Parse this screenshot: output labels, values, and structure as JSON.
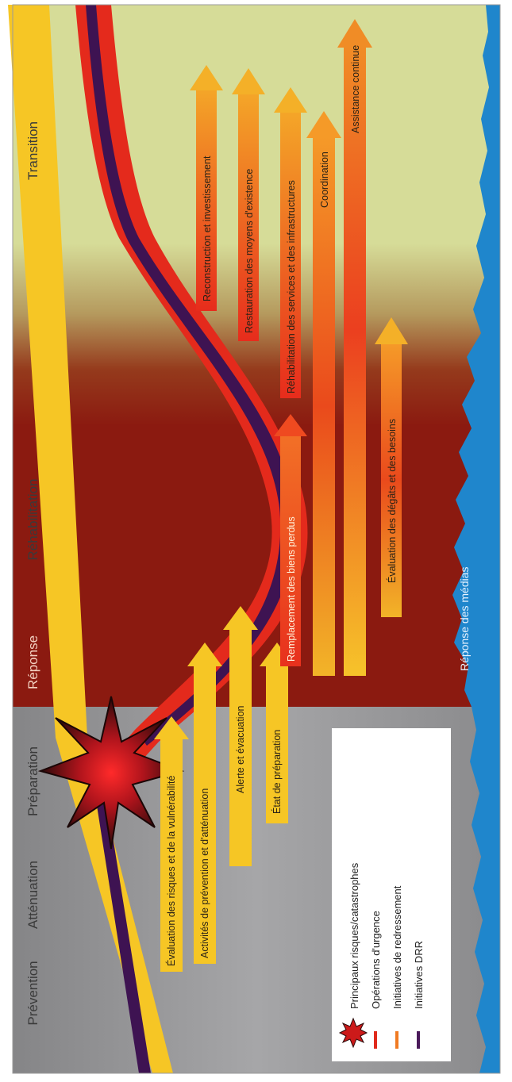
{
  "phases": {
    "prevention": "Prévention",
    "attenuation": "Atténuation",
    "preparation": "Préparation",
    "reponse": "Réponse",
    "rehabilitation": "Réhabilitation",
    "transition": "Transition"
  },
  "arrows": {
    "evaluation_risques": "Évaluation des risques et de la vulnérabilité",
    "activites_prevention": "Activités de prévention et d'atténuation",
    "alerte": "Alerte et évacuation",
    "etat_preparation": "État de préparation",
    "remplacement": "Remplacement des biens perdus",
    "reconstruction": "Reconstruction et investissement",
    "restauration": "Restauration des moyens d'existence",
    "rehabilitation_services": "Réhabilitation des services et des infrastructures",
    "coordination": "Coordination",
    "assistance": "Assistance continue",
    "evaluation_degats": "Évaluation des dégâts et des besoins"
  },
  "media_label": "Réponse des médias",
  "legend": {
    "items": [
      {
        "label": "Principaux risques/catastrophes",
        "color": "#cc1a1a",
        "icon": "starburst-icon"
      },
      {
        "label": "Opérations d'urgence",
        "color": "#e02a1c"
      },
      {
        "label": "Initiatives de redressement",
        "color": "#f07a22"
      },
      {
        "label": "Initiatives DRR",
        "color": "#4a1a5a"
      }
    ]
  },
  "colors": {
    "pre_disaster_bg": "#9a9a9c",
    "post_disaster_bg": "#d6dc98",
    "response_red": "#9a1a10",
    "media_blue": "#1f86cc",
    "yellow_band": "#f6c625",
    "drr_purple": "#3e1352"
  }
}
